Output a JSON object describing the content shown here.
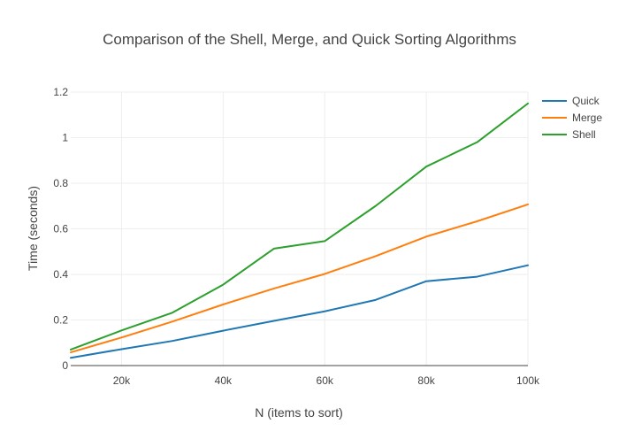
{
  "chart_data": {
    "type": "line",
    "title": "Comparison of the Shell, Merge, and Quick Sorting Algorithms",
    "xlabel": "N (items to sort)",
    "ylabel": "Time (seconds)",
    "x": [
      10000,
      20000,
      30000,
      40000,
      50000,
      60000,
      70000,
      80000,
      90000,
      100000
    ],
    "xlim": [
      10000,
      100000
    ],
    "ylim": [
      0,
      1.2
    ],
    "x_ticks": [
      20000,
      40000,
      60000,
      80000,
      100000
    ],
    "x_tick_labels": [
      "20k",
      "40k",
      "60k",
      "80k",
      "100k"
    ],
    "y_ticks": [
      0,
      0.2,
      0.4,
      0.6,
      0.8,
      1,
      1.2
    ],
    "y_tick_labels": [
      "0",
      "0.2",
      "0.4",
      "0.6",
      "0.8",
      "1",
      "1.2"
    ],
    "grid": true,
    "legend_position": "top-right",
    "series": [
      {
        "name": "Quick",
        "color": "#1f77b4",
        "values": [
          0.034,
          0.072,
          0.108,
          0.153,
          0.196,
          0.238,
          0.288,
          0.37,
          0.39,
          0.44
        ]
      },
      {
        "name": "Merge",
        "color": "#ff7f0e",
        "values": [
          0.058,
          0.123,
          0.193,
          0.268,
          0.338,
          0.402,
          0.48,
          0.566,
          0.633,
          0.707
        ]
      },
      {
        "name": "Shell",
        "color": "#2ca02c",
        "values": [
          0.07,
          0.154,
          0.232,
          0.355,
          0.513,
          0.546,
          0.7,
          0.873,
          0.98,
          1.15
        ]
      }
    ]
  }
}
